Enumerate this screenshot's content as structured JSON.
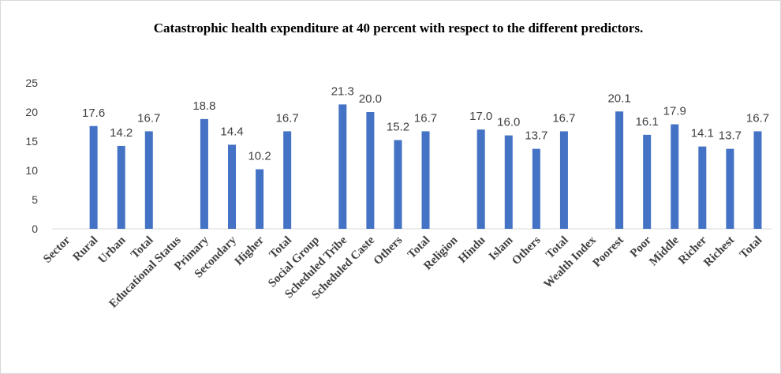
{
  "chart_data": {
    "type": "bar",
    "title": "Catastrophic health expenditure at 40 percent with respect to the different predictors.",
    "ylim": [
      0,
      25
    ],
    "yticks": [
      0,
      5,
      10,
      15,
      20,
      25
    ],
    "grid": false,
    "legend": "none",
    "bar_color": "#4472c4",
    "categories": [
      "Sector",
      "Rural",
      "Urban",
      "Total",
      "Educational Status",
      "Primary",
      "Secondary",
      "Higher",
      "Total",
      "Social Group",
      "Scheduled Tribe",
      "Scheduled Caste",
      "Others",
      "Total",
      "Religion",
      "Hindu",
      "Islam",
      "Others",
      "Total",
      "Wealth Index",
      "Poorest",
      "Poor",
      "Middle",
      "Richer",
      "Richest",
      "Total"
    ],
    "values": [
      null,
      17.6,
      14.2,
      16.7,
      null,
      18.8,
      14.4,
      10.2,
      16.7,
      null,
      21.3,
      20.0,
      15.2,
      16.7,
      null,
      17.0,
      16.0,
      13.7,
      16.7,
      null,
      20.1,
      16.1,
      17.9,
      14.1,
      13.7,
      16.7
    ],
    "data_labels": [
      "",
      "17.6",
      "14.2",
      "16.7",
      "",
      "18.8",
      "14.4",
      "10.2",
      "16.7",
      "",
      "21.3",
      "20.0",
      "15.2",
      "16.7",
      "",
      "17.0",
      "16.0",
      "13.7",
      "16.7",
      "",
      "20.1",
      "16.1",
      "17.9",
      "14.1",
      "13.7",
      "16.7"
    ]
  }
}
